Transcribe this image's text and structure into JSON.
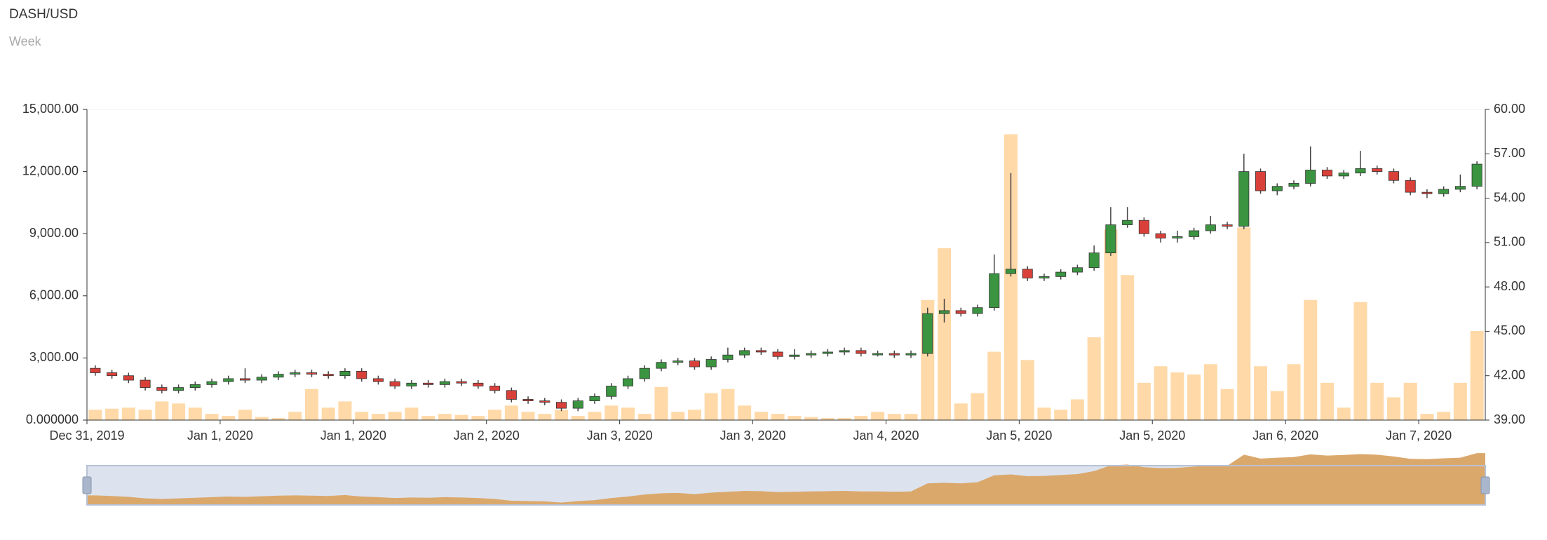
{
  "chart_data": {
    "type": "candlestick",
    "title": "DASH/USD",
    "subtitle": "Week",
    "xticks": [
      {
        "value": 0,
        "label": "Dec 31, 2019"
      },
      {
        "value": 8,
        "label": "Jan 1, 2020"
      },
      {
        "value": 16,
        "label": "Jan 1, 2020"
      },
      {
        "value": 24,
        "label": "Jan 2, 2020"
      },
      {
        "value": 32,
        "label": "Jan 3, 2020"
      },
      {
        "value": 40,
        "label": "Jan 3, 2020"
      },
      {
        "value": 48,
        "label": "Jan 4, 2020"
      },
      {
        "value": 56,
        "label": "Jan 5, 2020"
      },
      {
        "value": 64,
        "label": "Jan 5, 2020"
      },
      {
        "value": 72,
        "label": "Jan 6, 2020"
      },
      {
        "value": 80,
        "label": "Jan 7, 2020"
      }
    ],
    "open": [
      42.5,
      42.2,
      42.0,
      41.7,
      41.2,
      41.0,
      41.2,
      41.4,
      41.6,
      41.8,
      41.7,
      41.9,
      42.1,
      42.2,
      42.1,
      42.0,
      42.3,
      41.8,
      41.6,
      41.3,
      41.5,
      41.4,
      41.6,
      41.5,
      41.3,
      41.0,
      40.4,
      40.3,
      40.2,
      39.8,
      40.3,
      40.6,
      41.3,
      41.8,
      42.5,
      42.9,
      43.0,
      42.6,
      43.1,
      43.4,
      43.7,
      43.6,
      43.3,
      43.4,
      43.5,
      43.6,
      43.7,
      43.5,
      43.5,
      43.4,
      43.5,
      46.2,
      46.4,
      46.2,
      46.6,
      48.9,
      49.2,
      48.6,
      48.7,
      49.0,
      49.3,
      50.3,
      52.2,
      52.5,
      51.6,
      51.3,
      51.4,
      51.8,
      52.2,
      52.1,
      55.8,
      54.5,
      54.8,
      55.0,
      55.9,
      55.5,
      55.7,
      56.0,
      55.8,
      55.2,
      54.4,
      54.3,
      54.6,
      54.8
    ],
    "high": [
      42.7,
      42.4,
      42.2,
      41.9,
      41.4,
      41.4,
      41.6,
      41.8,
      42.0,
      42.5,
      42.1,
      42.3,
      42.4,
      42.4,
      42.3,
      42.5,
      42.5,
      42.0,
      41.8,
      41.7,
      41.7,
      41.8,
      41.8,
      41.7,
      41.5,
      41.2,
      40.6,
      40.5,
      40.4,
      40.5,
      40.8,
      41.5,
      42.0,
      42.7,
      43.1,
      43.2,
      43.2,
      43.3,
      43.9,
      43.9,
      43.9,
      43.8,
      43.8,
      43.7,
      43.8,
      43.9,
      43.9,
      43.7,
      43.7,
      43.7,
      46.6,
      47.2,
      46.6,
      46.8,
      50.2,
      55.7,
      49.4,
      48.9,
      49.2,
      49.5,
      50.8,
      53.4,
      53.4,
      52.7,
      51.8,
      51.8,
      52.0,
      52.8,
      52.4,
      57.0,
      56.0,
      55.0,
      55.2,
      57.5,
      56.1,
      55.9,
      57.2,
      56.2,
      56.0,
      55.4,
      54.6,
      54.8,
      55.6,
      56.5
    ],
    "low": [
      42.0,
      41.8,
      41.5,
      41.0,
      40.8,
      40.8,
      41.0,
      41.2,
      41.4,
      41.5,
      41.5,
      41.7,
      41.9,
      41.9,
      41.8,
      41.8,
      41.6,
      41.4,
      41.1,
      41.1,
      41.2,
      41.2,
      41.3,
      41.1,
      40.8,
      40.2,
      40.1,
      40.0,
      39.6,
      39.6,
      40.1,
      40.4,
      41.1,
      41.6,
      42.3,
      42.7,
      42.4,
      42.4,
      42.9,
      43.2,
      43.4,
      43.1,
      43.1,
      43.2,
      43.3,
      43.4,
      43.3,
      43.3,
      43.2,
      43.2,
      43.3,
      45.6,
      46.0,
      46.0,
      46.4,
      48.7,
      48.4,
      48.4,
      48.5,
      48.8,
      49.1,
      50.1,
      52.0,
      51.4,
      51.0,
      51.0,
      51.2,
      51.6,
      51.9,
      51.9,
      54.3,
      54.2,
      54.6,
      54.8,
      55.3,
      55.3,
      55.5,
      55.6,
      55.0,
      54.2,
      54.0,
      54.1,
      54.4,
      54.6
    ],
    "close": [
      42.2,
      42.0,
      41.7,
      41.2,
      41.0,
      41.2,
      41.4,
      41.6,
      41.8,
      41.7,
      41.9,
      42.1,
      42.2,
      42.1,
      42.0,
      42.3,
      41.8,
      41.6,
      41.3,
      41.5,
      41.4,
      41.6,
      41.5,
      41.3,
      41.0,
      40.4,
      40.3,
      40.2,
      39.8,
      40.3,
      40.6,
      41.3,
      41.8,
      42.5,
      42.9,
      43.0,
      42.6,
      43.1,
      43.4,
      43.7,
      43.6,
      43.3,
      43.4,
      43.5,
      43.6,
      43.7,
      43.5,
      43.5,
      43.4,
      43.5,
      46.2,
      46.4,
      46.2,
      46.6,
      48.9,
      49.2,
      48.6,
      48.7,
      49.0,
      49.3,
      50.3,
      52.2,
      52.5,
      51.6,
      51.3,
      51.4,
      51.8,
      52.2,
      52.1,
      55.8,
      54.5,
      54.8,
      55.0,
      55.9,
      55.5,
      55.7,
      56.0,
      55.8,
      55.2,
      54.4,
      54.3,
      54.6,
      54.8,
      56.3
    ],
    "up_color": "#3a9440",
    "down_color": "#d9403a",
    "volume": {
      "color": "#ffd9a8",
      "values": [
        500,
        550,
        600,
        500,
        900,
        800,
        600,
        300,
        200,
        500,
        150,
        100,
        400,
        1500,
        600,
        900,
        400,
        300,
        400,
        600,
        200,
        300,
        250,
        200,
        500,
        700,
        400,
        300,
        500,
        200,
        400,
        700,
        600,
        300,
        1600,
        400,
        500,
        1300,
        1500,
        700,
        400,
        300,
        200,
        150,
        100,
        100,
        200,
        400,
        300,
        300,
        5800,
        8300,
        800,
        1300,
        3300,
        13800,
        2900,
        600,
        500,
        1000,
        4000,
        9200,
        7000,
        1800,
        2600,
        2300,
        2200,
        2700,
        1500,
        9300,
        2600,
        1400,
        2700,
        5800,
        1800,
        600,
        5700,
        1800,
        1100,
        1800,
        300,
        400,
        1800,
        4300
      ]
    },
    "ylim": [
      0,
      15000
    ],
    "yticks": [
      {
        "value": 0,
        "label": "0.000000"
      },
      {
        "value": 3000,
        "label": "3,000.00"
      },
      {
        "value": 6000,
        "label": "6,000.00"
      },
      {
        "value": 9000,
        "label": "9,000.00"
      },
      {
        "value": 12000,
        "label": "12,000.00"
      },
      {
        "value": 15000,
        "label": "15,000.00"
      }
    ],
    "y2lim": [
      39,
      60
    ],
    "y2ticks": [
      {
        "value": 39,
        "label": "39.00"
      },
      {
        "value": 42,
        "label": "42.00"
      },
      {
        "value": 45,
        "label": "45.00"
      },
      {
        "value": 48,
        "label": "48.00"
      },
      {
        "value": 51,
        "label": "51.00"
      },
      {
        "value": 54,
        "label": "54.00"
      },
      {
        "value": 57,
        "label": "57.00"
      },
      {
        "value": 60,
        "label": "60.00"
      }
    ],
    "navigator_color": "#dba86c"
  }
}
